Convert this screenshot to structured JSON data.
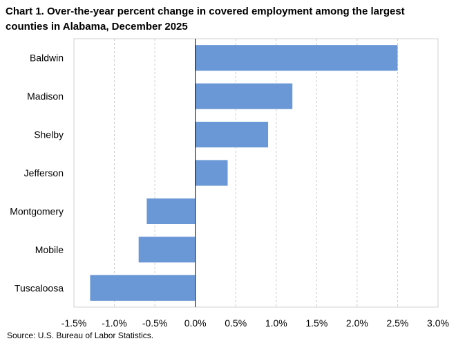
{
  "header": {
    "title": "Chart 1. Over-the-year percent change in covered employment among the largest counties in Alabama, December 2025"
  },
  "footer": {
    "source": "Source: U.S. Bureau of Labor Statistics."
  },
  "chart_data": {
    "type": "bar",
    "orientation": "horizontal",
    "title": "Chart 1. Over-the-year percent change in covered employment among the largest counties in Alabama, December 2025",
    "xlabel": "",
    "ylabel": "",
    "categories": [
      "Baldwin",
      "Madison",
      "Shelby",
      "Jefferson",
      "Montgomery",
      "Mobile",
      "Tuscaloosa"
    ],
    "values": [
      2.5,
      1.2,
      0.9,
      0.4,
      -0.6,
      -0.7,
      -1.3
    ],
    "value_unit": "percent",
    "xlim": [
      -1.5,
      3.0
    ],
    "x_ticks": [
      -1.5,
      -1.0,
      -0.5,
      0.0,
      0.5,
      1.0,
      1.5,
      2.0,
      2.5,
      3.0
    ],
    "x_tick_labels": [
      "-1.5%",
      "-1.0%",
      "-0.5%",
      "0.0%",
      "0.5%",
      "1.0%",
      "1.5%",
      "2.0%",
      "2.5%",
      "3.0%"
    ],
    "grid": "vertical-dashed",
    "legend": "none",
    "bar_color": "#6a97d6",
    "grid_color": "#cccccc",
    "axis_color": "#000000"
  }
}
